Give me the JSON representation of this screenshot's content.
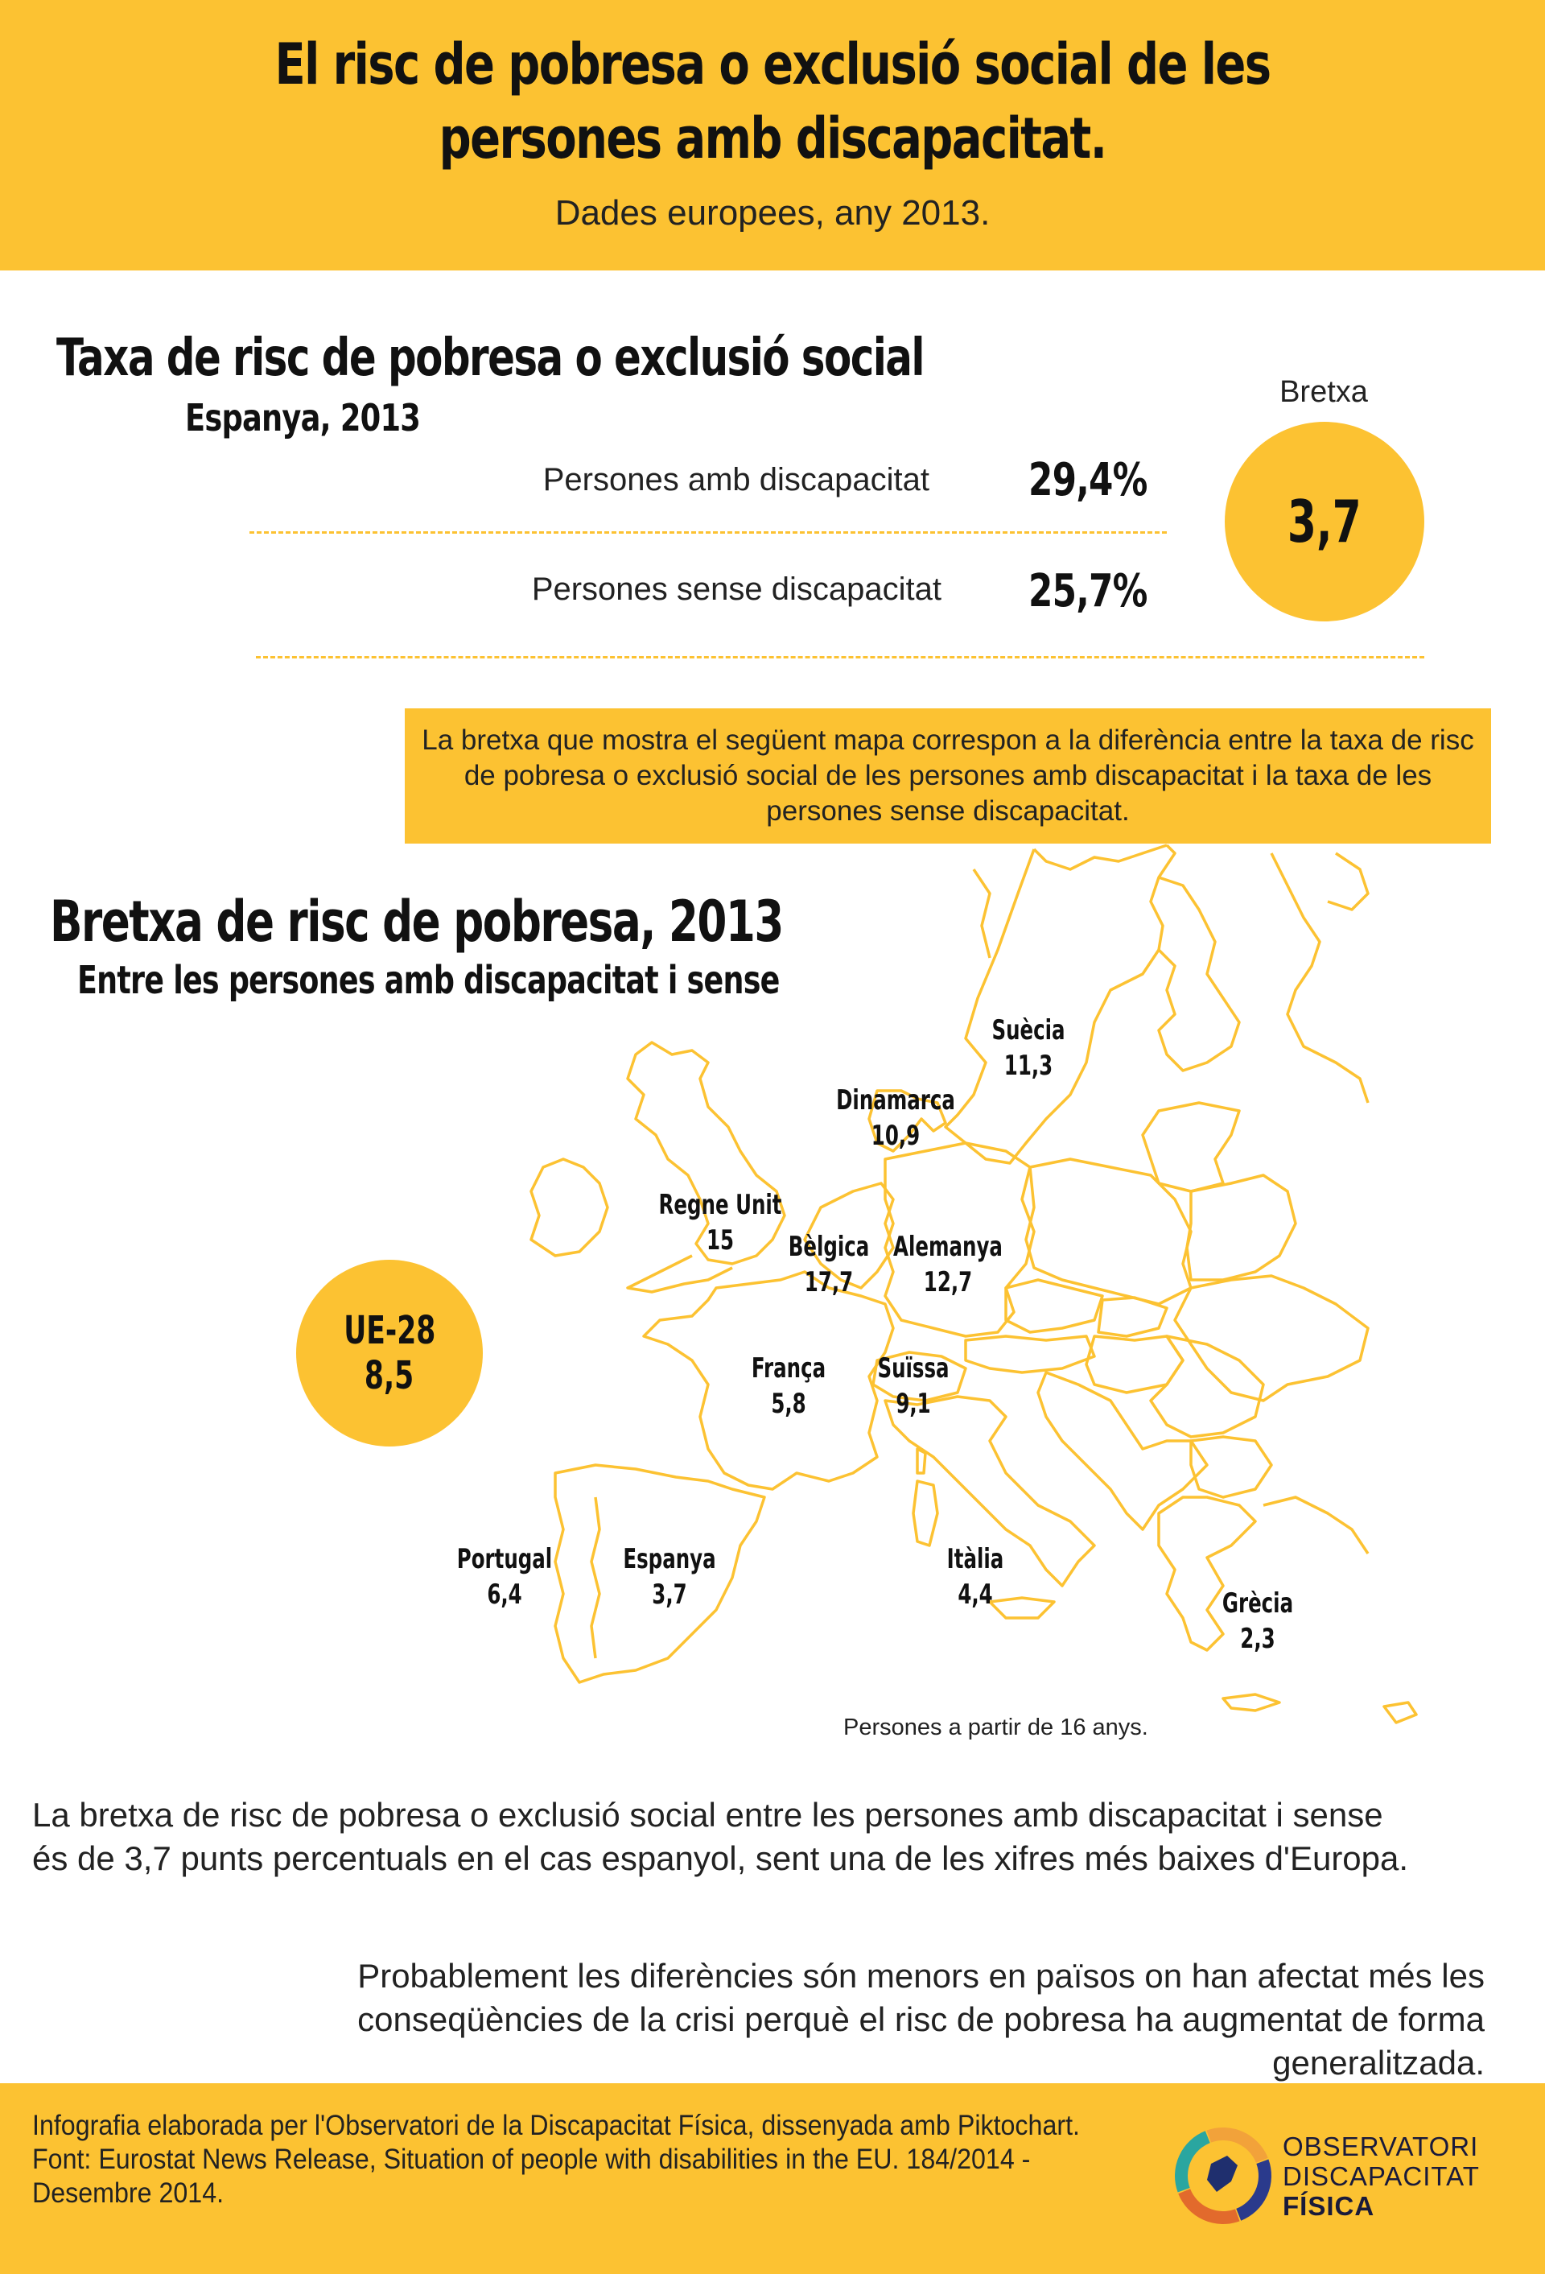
{
  "header": {
    "title_line1": "El risc de pobresa o exclusió social de les",
    "title_line2": "persones amb discapacitat.",
    "subtitle": "Dades europees, any 2013."
  },
  "spain_rates": {
    "title": "Taxa de risc de pobresa o exclusió social",
    "subtitle": "Espanya, 2013",
    "rows": [
      {
        "label": "Persones amb discapacitat",
        "value": "29,4%"
      },
      {
        "label": "Persones sense discapacitat",
        "value": "25,7%"
      }
    ],
    "gap_label": "Bretxa",
    "gap_value": "3,7"
  },
  "note": "La bretxa que mostra el següent mapa correspon a la diferència entre la taxa de risc de pobresa o exclusió social de les persones amb discapacitat i la taxa de les persones sense discapacitat.",
  "map": {
    "title": "Bretxa de risc de pobresa, 2013",
    "subtitle": "Entre les persones amb discapacitat i sense",
    "eu_label": "UE-28",
    "eu_value": "8,5",
    "countries": [
      {
        "name": "Suècia",
        "value": "11,3"
      },
      {
        "name": "Dinamarca",
        "value": "10,9"
      },
      {
        "name": "Regne Unit",
        "value": "15"
      },
      {
        "name": "Bèlgica",
        "value": "17,7"
      },
      {
        "name": "Alemanya",
        "value": "12,7"
      },
      {
        "name": "França",
        "value": "5,8"
      },
      {
        "name": "Suïssa",
        "value": "9,1"
      },
      {
        "name": "Portugal",
        "value": "6,4"
      },
      {
        "name": "Espanya",
        "value": "3,7"
      },
      {
        "name": "Itàlia",
        "value": "4,4"
      },
      {
        "name": "Grècia",
        "value": "2,3"
      }
    ],
    "note": "Persones a partir de 16 anys.",
    "outline_color": "#fcc232"
  },
  "paragraph_1": "La bretxa de risc de pobresa o exclusió social entre les persones amb discapacitat i sense és de 3,7 punts percentuals en el cas espanyol, sent una de les xifres més baixes d'Europa.",
  "paragraph_2": "Probablement les diferències són menors en països on han afectat més les conseqüències de la crisi perquè el risc de pobresa ha augmentat de forma generalitzada.",
  "footer": {
    "credit_line1": "Infografia elaborada per l'Observatori de la Discapacitat Física, dissenyada amb Piktochart.",
    "credit_line2": "Font: Eurostat News Release, Situation of people with disabilities in the EU. 184/2014 -",
    "credit_line3": "Desembre 2014.",
    "logo_line1": "OBSERVATORI",
    "logo_line2": "DISCAPACITAT",
    "logo_line3": "FÍSICA"
  },
  "colors": {
    "accent": "#fcc232",
    "text": "#111111"
  }
}
